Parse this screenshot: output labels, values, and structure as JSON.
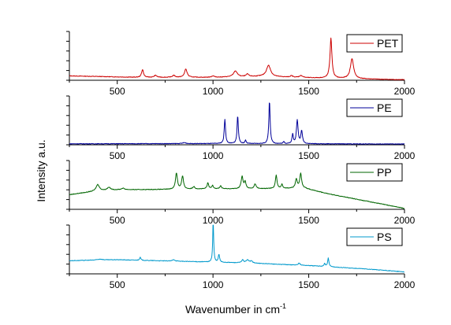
{
  "chart_data": {
    "type": "line",
    "layout": "stacked-panels",
    "xlabel": "Wavenumber in cm",
    "xlabel_superscript": "-1",
    "ylabel": "Intensity a.u.",
    "xlim": [
      250,
      2000
    ],
    "xticks": [
      500,
      1000,
      1500,
      2000
    ],
    "panels": [
      {
        "name": "PET",
        "color": "#cc0000",
        "legend_position": "top-right",
        "show_xtick_labels": true,
        "ylim": [
          0,
          10
        ],
        "baseline": [
          [
            250,
            0.9
          ],
          [
            600,
            0.6
          ],
          [
            1000,
            0.6
          ],
          [
            1250,
            0.8
          ],
          [
            1500,
            0.5
          ],
          [
            1750,
            0.3
          ],
          [
            2000,
            0.1
          ]
        ],
        "peaks": [
          {
            "x": 632,
            "h": 1.6,
            "w": 6
          },
          {
            "x": 700,
            "h": 0.4,
            "w": 8
          },
          {
            "x": 795,
            "h": 0.4,
            "w": 8
          },
          {
            "x": 858,
            "h": 1.7,
            "w": 8
          },
          {
            "x": 1000,
            "h": 0.3,
            "w": 8
          },
          {
            "x": 1117,
            "h": 1.2,
            "w": 12
          },
          {
            "x": 1180,
            "h": 0.5,
            "w": 8
          },
          {
            "x": 1290,
            "h": 2.3,
            "w": 13
          },
          {
            "x": 1410,
            "h": 0.3,
            "w": 8
          },
          {
            "x": 1460,
            "h": 0.4,
            "w": 10
          },
          {
            "x": 1616,
            "h": 8.2,
            "w": 6
          },
          {
            "x": 1726,
            "h": 4.1,
            "w": 10
          }
        ]
      },
      {
        "name": "PE",
        "color": "#000099",
        "legend_position": "top-right",
        "show_xtick_labels": true,
        "ylim": [
          0,
          10
        ],
        "baseline": [
          [
            250,
            0.2
          ],
          [
            1000,
            0.25
          ],
          [
            1500,
            0.2
          ],
          [
            2000,
            0.15
          ]
        ],
        "peaks": [
          {
            "x": 850,
            "h": 0.2,
            "w": 10
          },
          {
            "x": 1062,
            "h": 5.0,
            "w": 4
          },
          {
            "x": 1129,
            "h": 5.7,
            "w": 4
          },
          {
            "x": 1170,
            "h": 0.7,
            "w": 4
          },
          {
            "x": 1295,
            "h": 8.8,
            "w": 4
          },
          {
            "x": 1370,
            "h": 0.4,
            "w": 4
          },
          {
            "x": 1416,
            "h": 1.9,
            "w": 4
          },
          {
            "x": 1440,
            "h": 4.8,
            "w": 5
          },
          {
            "x": 1463,
            "h": 2.6,
            "w": 5
          }
        ]
      },
      {
        "name": "PP",
        "color": "#006600",
        "legend_position": "top-right",
        "show_xtick_labels": true,
        "ylim": [
          0,
          10
        ],
        "baseline": [
          [
            250,
            3.0
          ],
          [
            400,
            3.8
          ],
          [
            500,
            4.0
          ],
          [
            800,
            4.1
          ],
          [
            1000,
            4.2
          ],
          [
            1200,
            4.2
          ],
          [
            1400,
            4.3
          ],
          [
            1480,
            4.3
          ],
          [
            1600,
            3.2
          ],
          [
            1800,
            1.7
          ],
          [
            2000,
            0.2
          ]
        ],
        "peaks": [
          {
            "x": 398,
            "h": 1.3,
            "w": 10
          },
          {
            "x": 456,
            "h": 0.6,
            "w": 10
          },
          {
            "x": 530,
            "h": 0.3,
            "w": 10
          },
          {
            "x": 809,
            "h": 3.3,
            "w": 6
          },
          {
            "x": 841,
            "h": 2.6,
            "w": 6
          },
          {
            "x": 900,
            "h": 0.5,
            "w": 6
          },
          {
            "x": 973,
            "h": 1.2,
            "w": 5
          },
          {
            "x": 998,
            "h": 0.7,
            "w": 5
          },
          {
            "x": 1040,
            "h": 0.6,
            "w": 5
          },
          {
            "x": 1152,
            "h": 2.5,
            "w": 6
          },
          {
            "x": 1168,
            "h": 1.4,
            "w": 5
          },
          {
            "x": 1220,
            "h": 1.0,
            "w": 6
          },
          {
            "x": 1330,
            "h": 2.7,
            "w": 5
          },
          {
            "x": 1360,
            "h": 0.8,
            "w": 5
          },
          {
            "x": 1435,
            "h": 1.8,
            "w": 6
          },
          {
            "x": 1458,
            "h": 3.0,
            "w": 6
          }
        ]
      },
      {
        "name": "PS",
        "color": "#0099cc",
        "legend_position": "top-right",
        "show_xtick_labels": true,
        "ylim": [
          0,
          10
        ],
        "baseline": [
          [
            250,
            2.7
          ],
          [
            500,
            2.9
          ],
          [
            800,
            2.6
          ],
          [
            1000,
            2.4
          ],
          [
            1200,
            2.2
          ],
          [
            1500,
            1.7
          ],
          [
            1800,
            1.0
          ],
          [
            2000,
            0.4
          ]
        ],
        "peaks": [
          {
            "x": 410,
            "h": 0.2,
            "w": 15
          },
          {
            "x": 620,
            "h": 0.6,
            "w": 4
          },
          {
            "x": 795,
            "h": 0.3,
            "w": 8
          },
          {
            "x": 1001,
            "h": 8.4,
            "w": 3
          },
          {
            "x": 1031,
            "h": 1.6,
            "w": 4
          },
          {
            "x": 1155,
            "h": 0.6,
            "w": 6
          },
          {
            "x": 1180,
            "h": 0.6,
            "w": 8
          },
          {
            "x": 1200,
            "h": 0.4,
            "w": 8
          },
          {
            "x": 1450,
            "h": 0.4,
            "w": 6
          },
          {
            "x": 1583,
            "h": 0.6,
            "w": 4
          },
          {
            "x": 1602,
            "h": 1.8,
            "w": 4
          }
        ]
      }
    ]
  }
}
